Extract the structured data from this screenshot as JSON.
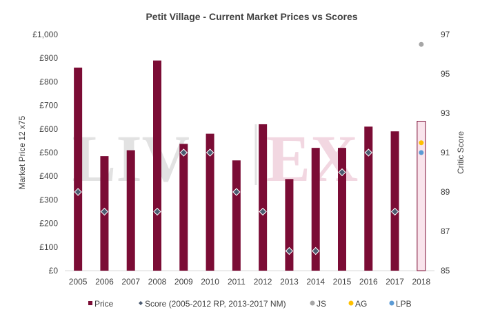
{
  "chart_data": {
    "type": "bar",
    "title": "Petit Village - Current Market Prices vs Scores",
    "ylabel": "Market Price 12 x75",
    "y2label": "Critic Score",
    "categories": [
      "2005",
      "2006",
      "2007",
      "2008",
      "2009",
      "2010",
      "2011",
      "2012",
      "2013",
      "2014",
      "2015",
      "2016",
      "2017",
      "2018"
    ],
    "ylim": [
      0,
      1000
    ],
    "y_ticks": [
      "£0",
      "£100",
      "£200",
      "£300",
      "£400",
      "£500",
      "£600",
      "£700",
      "£800",
      "£900",
      "£1,000"
    ],
    "y2lim": [
      85,
      97
    ],
    "y2_ticks": [
      "85",
      "87",
      "89",
      "91",
      "93",
      "95",
      "97"
    ],
    "series": [
      {
        "name": "Price",
        "kind": "bar",
        "color": "#7b0c35",
        "values": [
          860,
          485,
          510,
          890,
          537,
          580,
          467,
          620,
          388,
          520,
          520,
          610,
          590,
          633
        ],
        "highlight": {
          "index": 13,
          "fill": "#f9e4ec",
          "stroke": "#7b0c35"
        }
      },
      {
        "name": "Score (2005-2012 RP, 2013-2017 NM)",
        "kind": "scatter",
        "axis": "right",
        "marker": "diamond",
        "color": "#4a5a70",
        "values": [
          89,
          88,
          null,
          88,
          91,
          91,
          89,
          88,
          86,
          86,
          90,
          91,
          88,
          null
        ]
      },
      {
        "name": "JS",
        "kind": "scatter",
        "axis": "right",
        "marker": "circle",
        "color": "#a6a6a6",
        "x": "2018",
        "value": 96.5
      },
      {
        "name": "AG",
        "kind": "scatter",
        "axis": "right",
        "marker": "circle",
        "color": "#ffc000",
        "x": "2018",
        "value": 91.5
      },
      {
        "name": "LPB",
        "kind": "scatter",
        "axis": "right",
        "marker": "circle",
        "color": "#5b9bd5",
        "x": "2018",
        "value": 91
      }
    ],
    "legend": {
      "position": "bottom"
    },
    "watermark": {
      "left": "LIV",
      "right": "EX",
      "left_color": "#cfcfcf",
      "right_color": "#efcdd9"
    },
    "grid": false
  }
}
